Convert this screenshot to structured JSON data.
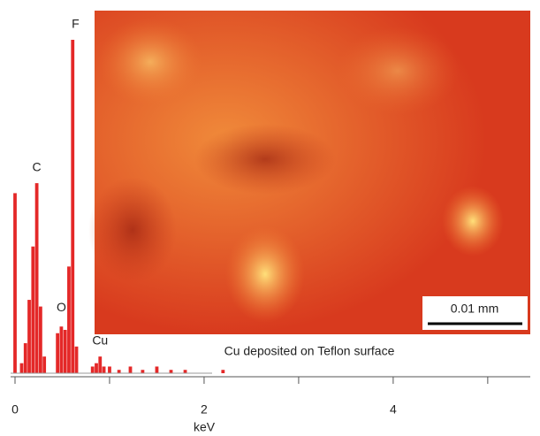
{
  "chart_data": {
    "type": "bar",
    "x": [
      0,
      0.07,
      0.11,
      0.15,
      0.19,
      0.23,
      0.27,
      0.31,
      0.45,
      0.49,
      0.53,
      0.57,
      0.61,
      0.65,
      0.82,
      0.86,
      0.9,
      0.94,
      1.0,
      1.1,
      1.22,
      1.35,
      1.5,
      1.65,
      1.8,
      2.2
    ],
    "values": [
      54,
      3,
      9,
      22,
      38,
      57,
      20,
      5,
      12,
      14,
      13,
      32,
      100,
      8,
      2,
      3,
      5,
      2,
      2,
      1,
      2,
      1,
      2,
      1,
      1,
      1
    ],
    "color": "#e42828",
    "xlim": [
      0,
      5.45
    ],
    "xticks": [
      0,
      2,
      4
    ],
    "xminorticks": [
      1,
      3,
      5
    ],
    "ylim": [
      0,
      100
    ],
    "xlabel": "keV",
    "caption": "Cu deposited on Teflon surface",
    "scale_bar": "0.01 mm",
    "annotations": [
      {
        "text": "C",
        "x": 0.23,
        "y": 60
      },
      {
        "text": "O",
        "x": 0.49,
        "y": 18
      },
      {
        "text": "F",
        "x": 0.64,
        "y": 103
      },
      {
        "text": "Cu",
        "x": 0.9,
        "y": 8
      }
    ]
  }
}
